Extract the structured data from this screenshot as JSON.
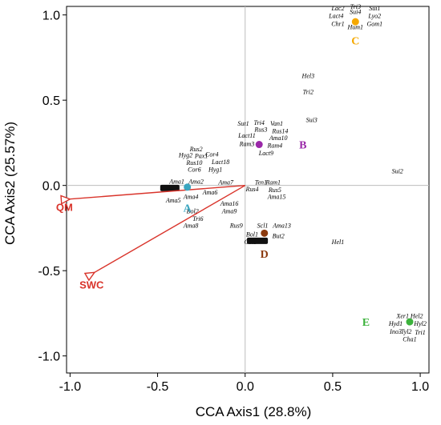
{
  "chart_data": {
    "type": "scatter",
    "xlabel": "CCA Axis1 (28.8%)",
    "ylabel": "CCA Axis2 (25.57%)",
    "xlim": [
      -1.02,
      1.05
    ],
    "ylim": [
      -1.1,
      1.05
    ],
    "x_ticks": [
      "-1.0",
      "-0.5",
      "0.0",
      "0.5",
      "1.0"
    ],
    "y_ticks": [
      "1.0",
      "0.5",
      "0.0",
      "-0.5",
      "-1.0"
    ],
    "x_tick_values": [
      -1.0,
      -0.5,
      0.0,
      0.5,
      1.0
    ],
    "y_tick_values": [
      1.0,
      0.5,
      0.0,
      -0.5,
      -1.0
    ],
    "grid": false,
    "reference_lines": [
      0,
      0
    ],
    "vectors": [
      {
        "name": "QM",
        "x": -1.0,
        "y": -0.08,
        "color": "#d9342b"
      },
      {
        "name": "SWC",
        "x": -0.86,
        "y": -0.51,
        "color": "#d9342b"
      }
    ],
    "groups": [
      {
        "name": "A",
        "x": -0.33,
        "y": -0.01,
        "color": "#3aa6c0",
        "label_dx": 0.0,
        "label_dy": -0.12
      },
      {
        "name": "B",
        "x": 0.08,
        "y": 0.24,
        "color": "#9a28a8",
        "label_dx": 0.25,
        "label_dy": 0.0
      },
      {
        "name": "C",
        "x": 0.63,
        "y": 0.96,
        "color": "#f5a800",
        "label_dx": 0.0,
        "label_dy": -0.11
      },
      {
        "name": "D",
        "x": 0.11,
        "y": -0.28,
        "color": "#8b3a0e",
        "label_dx": 0.0,
        "label_dy": -0.12
      },
      {
        "name": "E",
        "x": 0.94,
        "y": -0.8,
        "color": "#3cb23c",
        "label_dx": -0.25,
        "label_dy": 0.0
      }
    ],
    "species": [
      {
        "name": "Lac2",
        "x": 0.53,
        "y": 1.04
      },
      {
        "name": "Tri3",
        "x": 0.63,
        "y": 1.05
      },
      {
        "name": "Sui1",
        "x": 0.74,
        "y": 1.04
      },
      {
        "name": "Lact4",
        "x": 0.52,
        "y": 0.995
      },
      {
        "name": "Sui4",
        "x": 0.63,
        "y": 1.02
      },
      {
        "name": "Lyo2",
        "x": 0.74,
        "y": 0.995
      },
      {
        "name": "Chr1",
        "x": 0.53,
        "y": 0.95
      },
      {
        "name": "Hum1",
        "x": 0.63,
        "y": 0.93
      },
      {
        "name": "Gom1",
        "x": 0.74,
        "y": 0.95
      },
      {
        "name": "Hel3",
        "x": 0.36,
        "y": 0.645
      },
      {
        "name": "Tri2",
        "x": 0.36,
        "y": 0.55
      },
      {
        "name": "Sui3",
        "x": 0.38,
        "y": 0.385
      },
      {
        "name": "Sui2",
        "x": 0.87,
        "y": 0.085
      },
      {
        "name": "Sut1",
        "x": -0.01,
        "y": 0.365
      },
      {
        "name": "Tri4",
        "x": 0.08,
        "y": 0.37
      },
      {
        "name": "Van1",
        "x": 0.18,
        "y": 0.365
      },
      {
        "name": "Rus3",
        "x": 0.09,
        "y": 0.33
      },
      {
        "name": "Rus14",
        "x": 0.2,
        "y": 0.32
      },
      {
        "name": "Lact11",
        "x": 0.01,
        "y": 0.295
      },
      {
        "name": "Ama10",
        "x": 0.19,
        "y": 0.28
      },
      {
        "name": "Ram3",
        "x": 0.01,
        "y": 0.245
      },
      {
        "name": "Ram4",
        "x": 0.17,
        "y": 0.235
      },
      {
        "name": "Lact9",
        "x": 0.12,
        "y": 0.19
      },
      {
        "name": "Rus2",
        "x": -0.28,
        "y": 0.215
      },
      {
        "name": "Hyg2",
        "x": -0.34,
        "y": 0.18
      },
      {
        "name": "Pax1",
        "x": -0.25,
        "y": 0.175
      },
      {
        "name": "Cor4",
        "x": -0.19,
        "y": 0.185
      },
      {
        "name": "Rus10",
        "x": -0.29,
        "y": 0.135
      },
      {
        "name": "Lact18",
        "x": -0.14,
        "y": 0.14
      },
      {
        "name": "Cor6",
        "x": -0.29,
        "y": 0.095
      },
      {
        "name": "Hyg1",
        "x": -0.17,
        "y": 0.095
      },
      {
        "name": "Ama1",
        "x": -0.39,
        "y": 0.025
      },
      {
        "name": "Ama2",
        "x": -0.28,
        "y": 0.025
      },
      {
        "name": "Ama7",
        "x": -0.11,
        "y": 0.02
      },
      {
        "name": "Ten1",
        "x": 0.09,
        "y": 0.02
      },
      {
        "name": "Ram1",
        "x": 0.16,
        "y": 0.02
      },
      {
        "name": "Rus4",
        "x": 0.04,
        "y": -0.02
      },
      {
        "name": "Rus5",
        "x": 0.17,
        "y": -0.025
      },
      {
        "name": "Ama6",
        "x": -0.2,
        "y": -0.04
      },
      {
        "name": "Ama4",
        "x": -0.31,
        "y": -0.065
      },
      {
        "name": "Ama5",
        "x": -0.41,
        "y": -0.085
      },
      {
        "name": "Ama15",
        "x": 0.18,
        "y": -0.065
      },
      {
        "name": "Ama16",
        "x": -0.09,
        "y": -0.105
      },
      {
        "name": "Bol2",
        "x": -0.3,
        "y": -0.15
      },
      {
        "name": "Ama9",
        "x": -0.09,
        "y": -0.15
      },
      {
        "name": "Tri6",
        "x": -0.27,
        "y": -0.195
      },
      {
        "name": "Ama8",
        "x": -0.31,
        "y": -0.235
      },
      {
        "name": "Rus9",
        "x": -0.05,
        "y": -0.235
      },
      {
        "name": "Scl1",
        "x": 0.1,
        "y": -0.235
      },
      {
        "name": "Ama13",
        "x": 0.21,
        "y": -0.235
      },
      {
        "name": "Bol1",
        "x": 0.04,
        "y": -0.285
      },
      {
        "name": "But2",
        "x": 0.19,
        "y": -0.295
      },
      {
        "name": "Col1",
        "x": 0.03,
        "y": -0.33
      },
      {
        "name": "Hel1",
        "x": 0.53,
        "y": -0.33
      },
      {
        "name": "Xer1",
        "x": 0.9,
        "y": -0.765
      },
      {
        "name": "Hel2",
        "x": 0.98,
        "y": -0.765
      },
      {
        "name": "Hyd1",
        "x": 0.86,
        "y": -0.81
      },
      {
        "name": "Hyl2",
        "x": 1.0,
        "y": -0.81
      },
      {
        "name": "Ino3",
        "x": 0.86,
        "y": -0.855
      },
      {
        "name": "Tyl2",
        "x": 0.92,
        "y": -0.855
      },
      {
        "name": "Tri1",
        "x": 1.0,
        "y": -0.86
      },
      {
        "name": "Cha1",
        "x": 0.94,
        "y": -0.9
      }
    ],
    "overplotted_clusters": [
      {
        "x": -0.43,
        "y": -0.015,
        "width": 0.11
      },
      {
        "x": 0.07,
        "y": -0.325,
        "width": 0.12
      }
    ]
  }
}
